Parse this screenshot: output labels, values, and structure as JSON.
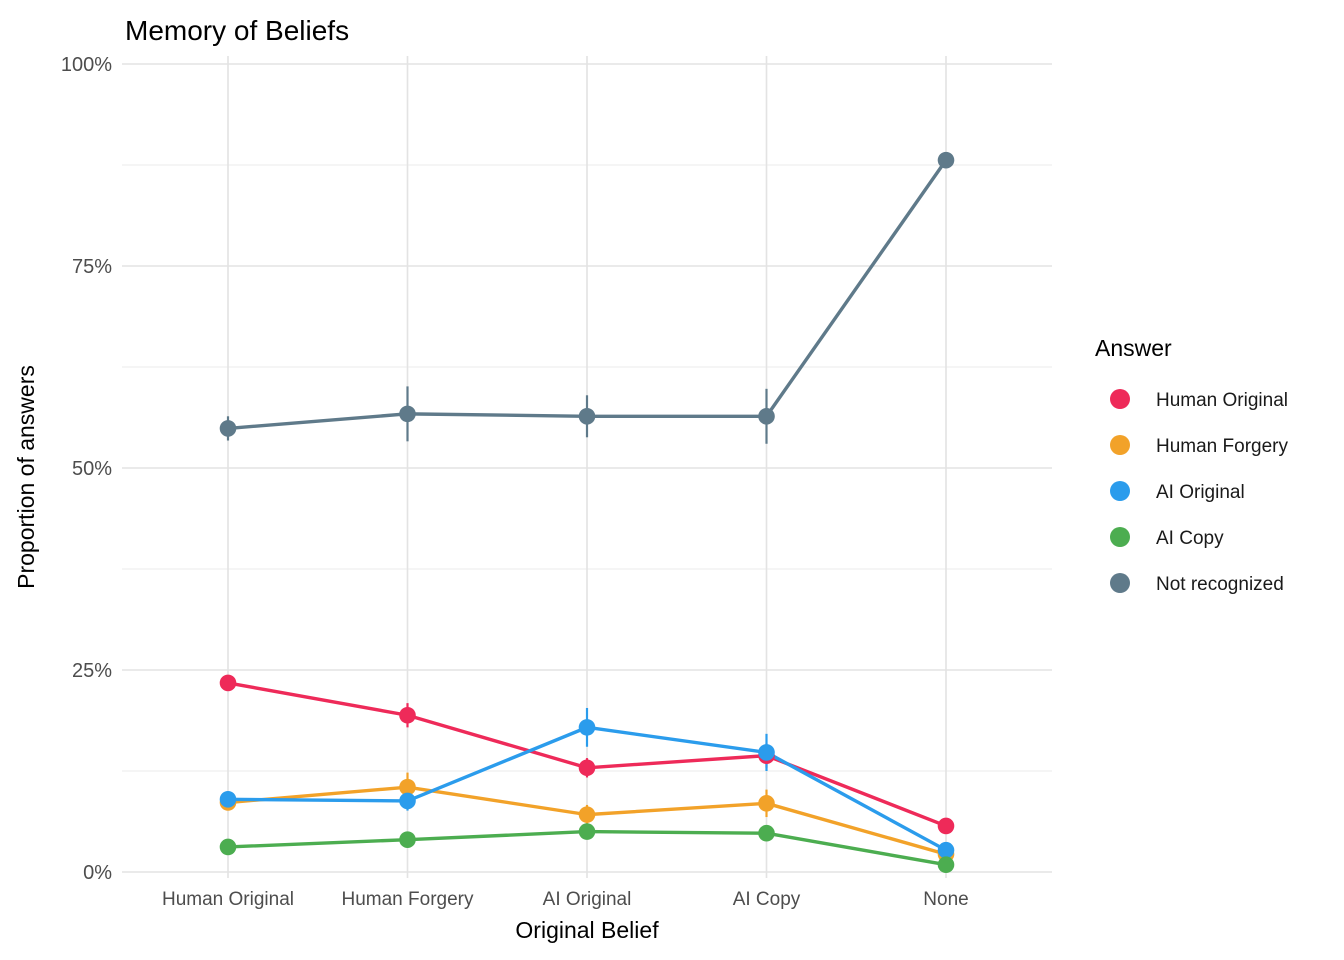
{
  "chart_data": {
    "type": "line",
    "title": "Memory of Beliefs",
    "xlabel": "Original Belief",
    "ylabel": "Proportion of answers",
    "legend_title": "Answer",
    "legend_position": "right",
    "grid": true,
    "ylim": [
      0,
      100
    ],
    "y_ticks": [
      {
        "value": 0,
        "label": "0%"
      },
      {
        "value": 25,
        "label": "25%"
      },
      {
        "value": 50,
        "label": "50%"
      },
      {
        "value": 75,
        "label": "75%"
      },
      {
        "value": 100,
        "label": "100%"
      }
    ],
    "y_minor_ticks": [
      12.5,
      37.5,
      62.5,
      87.5
    ],
    "categories": [
      "Human Original",
      "Human Forgery",
      "AI Original",
      "AI Copy",
      "None"
    ],
    "series": [
      {
        "name": "Human Original",
        "color": "#EE2A59",
        "values": [
          23.4,
          19.4,
          12.9,
          14.4,
          5.7
        ],
        "errors": [
          0.8,
          1.5,
          1.2,
          1.5,
          0.8
        ]
      },
      {
        "name": "Human Forgery",
        "color": "#F2A229",
        "values": [
          8.6,
          10.5,
          7.1,
          8.5,
          2.2
        ],
        "errors": [
          0.8,
          1.8,
          1.2,
          1.7,
          0.6
        ]
      },
      {
        "name": "AI Original",
        "color": "#2B9CEC",
        "values": [
          9.0,
          8.8,
          17.9,
          14.8,
          2.7
        ],
        "errors": [
          0.8,
          1.2,
          2.4,
          2.3,
          0.6
        ]
      },
      {
        "name": "AI Copy",
        "color": "#4CAD50",
        "values": [
          3.1,
          4.0,
          5.0,
          4.8,
          0.9
        ],
        "errors": [
          0.5,
          0.7,
          0.8,
          0.8,
          0.4
        ]
      },
      {
        "name": "Not recognized",
        "color": "#5F7A8A",
        "values": [
          54.9,
          56.7,
          56.4,
          56.4,
          88.1
        ],
        "errors": [
          1.5,
          3.4,
          2.6,
          3.4,
          0.8
        ]
      }
    ],
    "style": {
      "grid_major_color": "#e3e3e3",
      "grid_minor_color": "#efefef",
      "tick_text_color": "#4d4d4d"
    }
  }
}
